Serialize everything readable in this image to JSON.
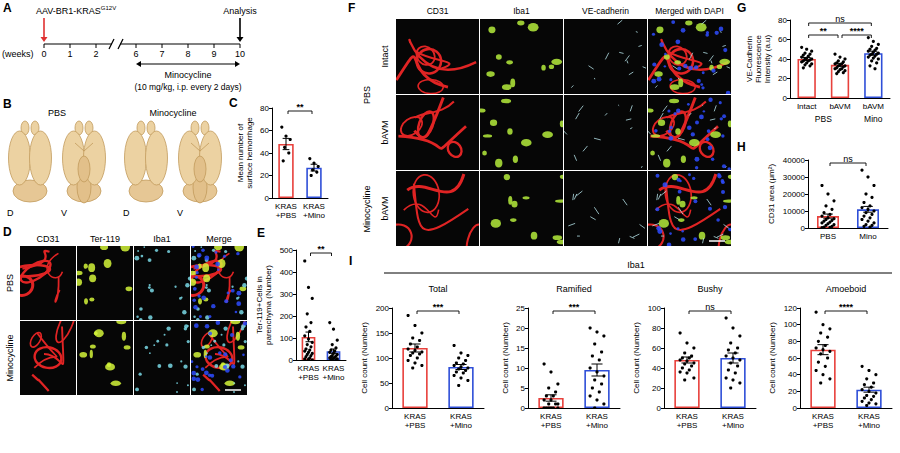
{
  "panels": {
    "A": {
      "letter": "A",
      "injection": {
        "text": "AAV-BR1-KRAS",
        "superscript": "G12V"
      },
      "endpoint": "Analysis",
      "axis_label": "(weeks)",
      "weeks": [
        0,
        1,
        2,
        6,
        7,
        8,
        9,
        10
      ],
      "treatment": {
        "label": "Minocycline",
        "detail": "(10 mg/kg, i.p. every 2 days)",
        "from": 6,
        "to": 10
      }
    },
    "B": {
      "letter": "B",
      "groups": [
        {
          "label": "PBS",
          "views": [
            "D",
            "V"
          ]
        },
        {
          "label": "Minocycline",
          "views": [
            "D",
            "V"
          ]
        }
      ]
    },
    "D": {
      "letter": "D",
      "columns": [
        "CD31",
        "Ter-119",
        "Iba1",
        "Merge"
      ],
      "rows": [
        "PBS",
        "Minocycline"
      ]
    },
    "F": {
      "letter": "F",
      "columns": [
        "CD31",
        "Iba1",
        "VE-cadherin",
        "Merged with DAPI"
      ],
      "row_groups": [
        {
          "label": "PBS",
          "rows": [
            "Intact",
            "bAVM"
          ]
        },
        {
          "label": "Minocycline",
          "rows": [
            "bAVM"
          ]
        }
      ]
    },
    "I": {
      "letter": "I",
      "header": "Iba1"
    }
  },
  "chart_data": [
    {
      "panel": "C",
      "type": "bar",
      "ylabel": "Mean number of surface hemorrhage",
      "categories": [
        "KRAS +PBS",
        "KRAS +Mino"
      ],
      "values": [
        48,
        27
      ],
      "errors": [
        5,
        3
      ],
      "points": [
        [
          63,
          55,
          52,
          45,
          40,
          33
        ],
        [
          35,
          31,
          28,
          25,
          23,
          20
        ]
      ],
      "colors": [
        "#e8413c",
        "#2f4fd8"
      ],
      "ylim": [
        0,
        80
      ],
      "yticks": [
        0,
        20,
        40,
        60,
        80
      ],
      "grid": false,
      "significance": [
        {
          "from": 0,
          "to": 1,
          "label": "**"
        }
      ]
    },
    {
      "panel": "E",
      "type": "bar",
      "ylabel": "Ter-119+Cells in parenchyma (Number)",
      "categories": [
        "KRAS +PBS",
        "KRAS +Mino"
      ],
      "values": [
        105,
        40
      ],
      "errors": [
        22,
        10
      ],
      "points": [
        [
          450,
          330,
          280,
          210,
          170,
          150,
          130,
          110,
          95,
          80,
          70,
          60,
          50,
          45,
          40,
          35,
          30,
          25,
          20,
          15,
          10,
          5,
          3,
          0
        ],
        [
          170,
          140,
          90,
          70,
          55,
          45,
          40,
          35,
          30,
          25,
          20,
          18,
          15,
          12,
          10,
          8,
          5,
          3,
          0,
          0
        ]
      ],
      "colors": [
        "#e8413c",
        "#2f4fd8"
      ],
      "ylim": [
        0,
        500
      ],
      "yticks": [
        0,
        100,
        200,
        300,
        400,
        500
      ],
      "grid": false,
      "significance": [
        {
          "from": 0,
          "to": 1,
          "label": "**"
        }
      ]
    },
    {
      "panel": "G",
      "type": "bar",
      "ylabel": "VE-Cadherin Fluorescence Intensity (a.u)",
      "categories": [
        "Intact",
        "bAVM",
        "bAVM"
      ],
      "groups": [
        {
          "label": "PBS",
          "categories": [
            0,
            1
          ]
        },
        {
          "label": "Mino",
          "categories": [
            2
          ]
        }
      ],
      "values": [
        40,
        34,
        46
      ],
      "errors": [
        1.5,
        1.5,
        2
      ],
      "points": [
        [
          52,
          50,
          48,
          46,
          45,
          44,
          43,
          42,
          41,
          40,
          40,
          39,
          38,
          38,
          37,
          36,
          35,
          34,
          33,
          31
        ],
        [
          45,
          42,
          40,
          38,
          37,
          36,
          35,
          35,
          34,
          33,
          33,
          32,
          31,
          30,
          30,
          29,
          28,
          27,
          26,
          25
        ],
        [
          62,
          58,
          55,
          53,
          51,
          50,
          49,
          48,
          47,
          46,
          45,
          45,
          44,
          43,
          42,
          41,
          40,
          38,
          36,
          33,
          30
        ]
      ],
      "colors": [
        "#e8413c",
        "#e8413c",
        "#2f4fd8"
      ],
      "ylim": [
        0,
        80
      ],
      "yticks": [
        0,
        20,
        40,
        60,
        80
      ],
      "grid": false,
      "significance": [
        {
          "from": 0,
          "to": 1,
          "label": "**"
        },
        {
          "from": 1,
          "to": 2,
          "label": "****"
        },
        {
          "from": 0,
          "to": 2,
          "label": "ns"
        }
      ]
    },
    {
      "panel": "H",
      "type": "bar",
      "ylabel": "CD31 area (μm²)",
      "categories": [
        "PBS",
        "Mino"
      ],
      "values": [
        7000,
        11000
      ],
      "errors": [
        1200,
        1700
      ],
      "points": [
        [
          25000,
          20000,
          16000,
          13000,
          11000,
          9000,
          8000,
          7000,
          6000,
          5500,
          5000,
          4500,
          4000,
          3500,
          3000,
          2500,
          2000,
          1500,
          1000,
          500,
          300,
          200
        ],
        [
          34000,
          30000,
          25000,
          20000,
          18000,
          15000,
          13000,
          12000,
          11000,
          10000,
          9000,
          8000,
          7000,
          6000,
          5000,
          4000,
          3000,
          2000,
          1500,
          1000,
          500
        ]
      ],
      "colors": [
        "#e8413c",
        "#2f4fd8"
      ],
      "ylim": [
        0,
        40000
      ],
      "yticks": [
        0,
        10000,
        20000,
        30000,
        40000
      ],
      "grid": false,
      "significance": [
        {
          "from": 0,
          "to": 1,
          "label": "ns"
        }
      ]
    },
    {
      "title": "Total",
      "type": "bar",
      "ylabel": "Cell count (Number)",
      "categories": [
        "KRAS +PBS",
        "KRAS +Mino"
      ],
      "values": [
        120,
        82
      ],
      "errors": [
        8,
        5
      ],
      "points": [
        [
          185,
          165,
          150,
          140,
          135,
          128,
          122,
          118,
          115,
          112,
          110,
          108,
          105,
          100,
          95,
          90,
          85,
          80
        ],
        [
          125,
          110,
          105,
          100,
          95,
          90,
          88,
          85,
          82,
          80,
          78,
          75,
          72,
          70,
          65,
          60,
          55,
          45
        ]
      ],
      "colors": [
        "#e8413c",
        "#2f4fd8"
      ],
      "ylim": [
        0,
        200
      ],
      "yticks": [
        0,
        50,
        100,
        150,
        200
      ],
      "grid": false,
      "significance": [
        {
          "from": 0,
          "to": 1,
          "label": "***"
        }
      ]
    },
    {
      "title": "Ramified",
      "type": "bar",
      "ylabel": "Cell count (Number)",
      "categories": [
        "KRAS +PBS",
        "KRAS +Mino"
      ],
      "values": [
        2.5,
        9.5
      ],
      "errors": [
        0.8,
        1.5
      ],
      "points": [
        [
          11,
          9,
          6,
          5,
          4,
          3,
          3,
          2,
          2,
          1,
          1,
          1,
          0,
          0,
          0,
          0,
          0,
          0
        ],
        [
          20,
          19,
          18,
          16,
          14,
          13,
          12,
          10,
          9,
          8,
          7,
          6,
          5,
          4,
          3,
          2,
          1,
          0
        ]
      ],
      "colors": [
        "#e8413c",
        "#2f4fd8"
      ],
      "ylim": [
        0,
        25
      ],
      "yticks": [
        0,
        5,
        10,
        15,
        20,
        25
      ],
      "grid": false,
      "significance": [
        {
          "from": 0,
          "to": 1,
          "label": "***"
        }
      ]
    },
    {
      "title": "Bushy",
      "type": "bar",
      "ylabel": "Cell count (Number)",
      "categories": [
        "KRAS +PBS",
        "KRAS +Mino"
      ],
      "values": [
        48,
        50
      ],
      "errors": [
        3,
        5
      ],
      "points": [
        [
          75,
          65,
          60,
          55,
          52,
          50,
          50,
          48,
          47,
          45,
          44,
          42,
          40,
          38,
          36,
          35,
          30,
          28
        ],
        [
          90,
          80,
          72,
          65,
          60,
          58,
          55,
          52,
          50,
          48,
          45,
          42,
          38,
          35,
          30,
          28,
          25,
          20
        ]
      ],
      "colors": [
        "#e8413c",
        "#2f4fd8"
      ],
      "ylim": [
        0,
        100
      ],
      "yticks": [
        0,
        20,
        40,
        60,
        80,
        100
      ],
      "grid": false,
      "significance": [
        {
          "from": 0,
          "to": 1,
          "label": "ns"
        }
      ]
    },
    {
      "title": "Amoeboid",
      "type": "bar",
      "ylabel": "Cell count (Number)",
      "categories": [
        "KRAS +PBS",
        "KRAS +Mino"
      ],
      "values": [
        70,
        22
      ],
      "errors": [
        6,
        3
      ],
      "points": [
        [
          115,
          100,
          95,
          90,
          85,
          80,
          75,
          72,
          70,
          68,
          65,
          60,
          55,
          50,
          45,
          40,
          35,
          30
        ],
        [
          50,
          45,
          40,
          35,
          30,
          28,
          25,
          22,
          20,
          18,
          15,
          14,
          12,
          10,
          8,
          6,
          5,
          3
        ]
      ],
      "colors": [
        "#e8413c",
        "#2f4fd8"
      ],
      "ylim": [
        0,
        120
      ],
      "yticks": [
        0,
        20,
        40,
        60,
        80,
        100,
        120
      ],
      "grid": false,
      "significance": [
        {
          "from": 0,
          "to": 1,
          "label": "****"
        }
      ]
    }
  ]
}
